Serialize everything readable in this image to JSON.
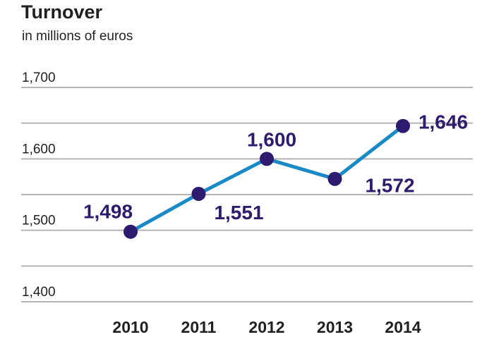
{
  "chart_data": {
    "type": "line",
    "title": "Turnover",
    "subtitle": "in millions of euros",
    "categories": [
      "2010",
      "2011",
      "2012",
      "2013",
      "2014"
    ],
    "series": [
      {
        "values": [
          1498,
          1551,
          1600,
          1572,
          1646
        ],
        "labels": [
          "1,498",
          "1,551",
          "1,600",
          "1,572",
          "1,646"
        ]
      }
    ],
    "y_ticks": [
      {
        "value": 1700,
        "label": "1,700"
      },
      {
        "value": 1600,
        "label": "1,600"
      },
      {
        "value": 1500,
        "label": "1,500"
      },
      {
        "value": 1400,
        "label": "1,400"
      }
    ],
    "ylim": [
      1400,
      1700
    ],
    "grid": true,
    "colors": {
      "line": "#1a8ac6",
      "marker": "#2e1a6e",
      "label": "#2e1a6e",
      "grid": "#b3b3b3",
      "text": "#231f20"
    }
  }
}
